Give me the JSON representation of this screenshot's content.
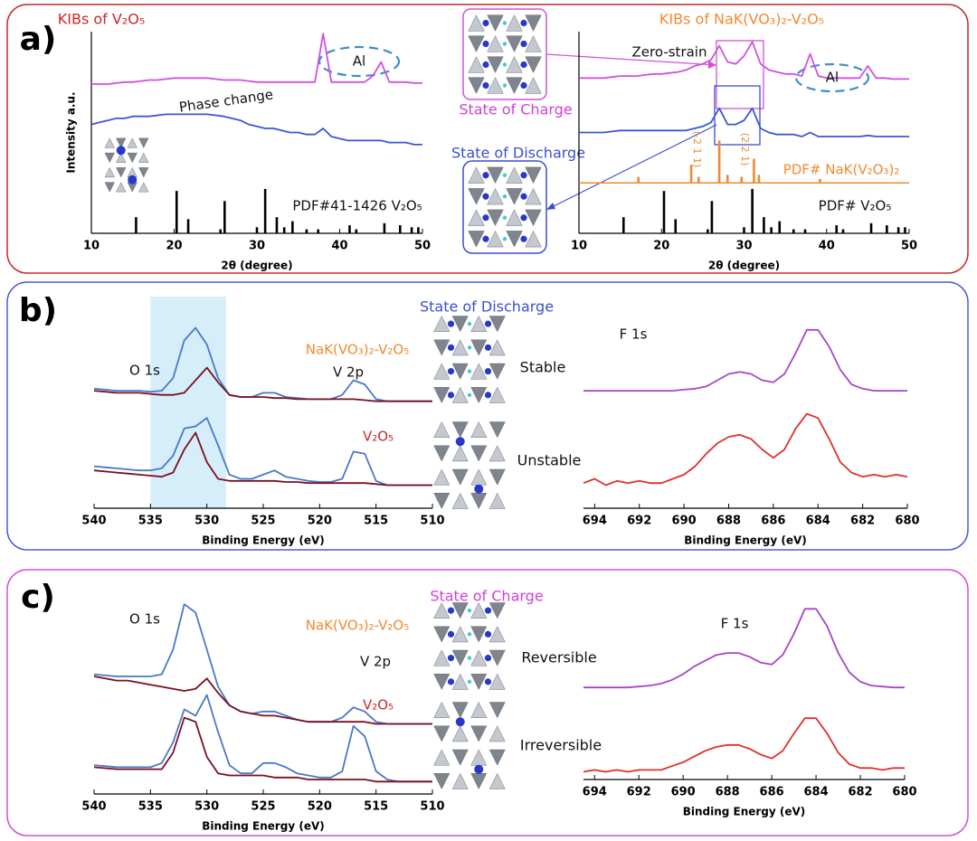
{
  "panels": [
    {
      "label": "a)",
      "texts": [
        {
          "text": "State of Charge",
          "color": "#d040d8"
        },
        {
          "text": "State of Discharge",
          "color": "#3a4fd0"
        }
      ]
    },
    {
      "label": "b)",
      "texts": [
        {
          "text": "State of Discharge",
          "color": "#3a4fd0"
        },
        {
          "text": "Stable",
          "color": "#111111"
        },
        {
          "text": "Unstable",
          "color": "#111111"
        }
      ]
    },
    {
      "label": "c)",
      "texts": [
        {
          "text": "State of Charge",
          "color": "#d040d8"
        },
        {
          "text": "Reversible",
          "color": "#111111"
        },
        {
          "text": "Irreversible",
          "color": "#111111"
        }
      ]
    }
  ],
  "chart_data": [
    {
      "type": "line",
      "title": "KIBs of V₂O₅",
      "title_color": "#c8282a",
      "xlabel": "2θ (degree)",
      "ylabel": "Intensity a.u.",
      "x": [
        10,
        11,
        12,
        13,
        14,
        15,
        16,
        17,
        18,
        19,
        20,
        21,
        22,
        23,
        24,
        25,
        26,
        27,
        28,
        29,
        30,
        31,
        32,
        33,
        34,
        35,
        36,
        37,
        38,
        39,
        40,
        41,
        42,
        43,
        44,
        45,
        46,
        47,
        48,
        49,
        50
      ],
      "xlim": [
        10,
        50
      ],
      "xticks": [
        10,
        20,
        30,
        40,
        50
      ],
      "ylim": [
        0,
        100
      ],
      "series": [
        {
          "color": "#d050e0",
          "values": [
            74,
            74,
            74,
            74.5,
            75,
            75,
            75.5,
            76,
            76,
            76.5,
            77,
            77,
            77,
            77,
            77,
            76.5,
            76,
            76,
            76,
            75.5,
            75,
            75,
            75,
            75,
            75,
            75,
            75,
            75,
            99,
            75,
            75,
            75,
            75,
            75,
            78,
            85,
            75,
            75,
            75,
            74.5,
            74.5
          ]
        },
        {
          "color": "#3a56d8",
          "values": [
            54,
            55,
            56,
            57,
            57,
            58,
            58,
            58,
            58.5,
            59,
            59,
            59,
            59,
            59,
            59,
            58.5,
            58,
            57,
            56,
            54,
            53,
            52,
            52,
            51,
            50,
            50,
            49,
            49,
            52,
            48,
            47,
            46,
            46,
            46,
            46,
            46,
            45,
            45,
            45,
            44,
            44
          ]
        },
        {
          "type": "stick",
          "color": "#000000",
          "x": [
            15.4,
            20.3,
            21.7,
            25.6,
            26.1,
            30.0,
            31.0,
            32.4,
            33.3,
            34.3,
            36.0,
            37.4,
            41.2,
            42.0,
            45.4,
            47.3,
            48.7,
            49.5
          ],
          "values": [
            8,
            21,
            7,
            2,
            16,
            3,
            22,
            8,
            3,
            6,
            2,
            2,
            4,
            2,
            5,
            4,
            3,
            3
          ]
        }
      ],
      "annotations": [
        {
          "text": "Phase change",
          "color": "#111111"
        },
        {
          "text": "Al",
          "color": "#111111"
        },
        {
          "text": "PDF#41-1426 V₂O₅",
          "color": "#111111"
        }
      ]
    },
    {
      "type": "line",
      "title": "KIBs of NaK(VO₃)₂-V₂O₅",
      "title_color": "#f08a30",
      "xlabel": "2θ (degree)",
      "x": [
        10,
        11,
        12,
        13,
        14,
        15,
        16,
        17,
        18,
        19,
        20,
        21,
        22,
        23,
        24,
        25,
        26,
        27,
        28,
        29,
        30,
        31,
        32,
        33,
        34,
        35,
        36,
        37,
        38,
        39,
        40,
        41,
        42,
        43,
        44,
        45,
        46,
        47,
        48,
        49,
        50
      ],
      "xlim": [
        10,
        50
      ],
      "xticks": [
        10,
        20,
        30,
        40,
        50
      ],
      "ylim": [
        0,
        100
      ],
      "series": [
        {
          "color": "#d050e0",
          "values": [
            77,
            77,
            77,
            77,
            77.5,
            78,
            78,
            78,
            78.5,
            79,
            79,
            79.5,
            80,
            81,
            83,
            84,
            86,
            93,
            85,
            84,
            88,
            95,
            84,
            81,
            80,
            79,
            79,
            78,
            89,
            78,
            77,
            77,
            77,
            77,
            77,
            83,
            77,
            77,
            76.5,
            76.5,
            76.5
          ]
        },
        {
          "color": "#3a56d8",
          "values": [
            50,
            50,
            50,
            50,
            50.5,
            51,
            51,
            51,
            51,
            51,
            51,
            51,
            51,
            51,
            52,
            53,
            55,
            62,
            54,
            54,
            56,
            62,
            52,
            50,
            49,
            49,
            49,
            48,
            50,
            48,
            48,
            48,
            48,
            48,
            48,
            48.5,
            48,
            48,
            48,
            48,
            48
          ]
        },
        {
          "type": "stick",
          "color": "#f08a30",
          "base": 25,
          "x": [
            17.2,
            23.6,
            24.5,
            27.0,
            28.0,
            29.7,
            31.2,
            31.8,
            39.2
          ],
          "values": [
            3,
            9,
            3,
            21,
            4,
            3,
            12,
            4,
            2
          ]
        },
        {
          "type": "stick",
          "color": "#000000",
          "x": [
            15.4,
            20.3,
            21.7,
            25.6,
            26.1,
            30.0,
            31.0,
            32.4,
            33.3,
            34.3,
            36.0,
            37.4,
            41.2,
            42.0,
            45.4,
            47.3,
            48.7,
            49.5
          ],
          "values": [
            8,
            21,
            7,
            2,
            16,
            3,
            22,
            8,
            3,
            6,
            2,
            2,
            4,
            2,
            5,
            4,
            3,
            3
          ]
        }
      ],
      "annotations": [
        {
          "text": "Zero-strain",
          "color": "#111111"
        },
        {
          "text": "Al",
          "color": "#111111"
        },
        {
          "text": "(-2 1 1)",
          "color": "#f08a30"
        },
        {
          "text": "(2 2 1)",
          "color": "#f08a30"
        },
        {
          "text": "PDF# NaK(V₂O₃)₂",
          "color": "#f08a30"
        },
        {
          "text": "PDF# V₂O₅",
          "color": "#111111"
        }
      ]
    },
    {
      "type": "line",
      "xlabel": "Binding Energy (eV)",
      "x": [
        540,
        539,
        538,
        537,
        536,
        535,
        534,
        533,
        532,
        531,
        530,
        529,
        528,
        527,
        526,
        525,
        524,
        523,
        522,
        521,
        520,
        519,
        518,
        517,
        516,
        515,
        514,
        513,
        512,
        511,
        510
      ],
      "xlim": [
        540,
        510
      ],
      "xticks": [
        540,
        535,
        530,
        525,
        520,
        515,
        510
      ],
      "ylim": [
        0,
        100
      ],
      "highlight": [
        535,
        528.3
      ],
      "series": [
        {
          "color": "#4a78c8",
          "values": [
            57,
            56.5,
            56,
            56,
            56,
            55.5,
            56,
            62,
            80,
            86,
            78,
            62,
            54,
            53,
            53,
            55,
            55,
            53,
            52.5,
            52,
            52,
            52,
            54,
            61,
            59,
            52,
            51,
            51,
            51,
            51,
            51
          ]
        },
        {
          "color": "#7a1020",
          "values": [
            56,
            55.5,
            55,
            55,
            55,
            54.5,
            54,
            54,
            55,
            61,
            67,
            60,
            54,
            53,
            53,
            53,
            52.5,
            52.5,
            52,
            52,
            52,
            52,
            52,
            52,
            51.5,
            51,
            51,
            51,
            51,
            51,
            51
          ]
        },
        {
          "color": "#4a78c8",
          "values": [
            20,
            19.5,
            19,
            18.5,
            18,
            18,
            19,
            25,
            38,
            39,
            43,
            30,
            16,
            14,
            14,
            16,
            18,
            15,
            14,
            13,
            12.5,
            12.5,
            14,
            27,
            26,
            13,
            11,
            11,
            11,
            11,
            11
          ]
        },
        {
          "color": "#7a1020",
          "values": [
            18,
            17.5,
            17,
            16.5,
            16,
            15.5,
            15,
            17,
            28,
            36,
            22,
            14,
            13,
            13,
            13,
            13,
            13,
            12.5,
            12.5,
            12,
            12,
            12,
            12,
            12,
            12,
            11.5,
            11,
            11,
            11,
            11,
            11
          ]
        }
      ],
      "annotations": [
        {
          "text": "O 1s",
          "color": "#111111"
        },
        {
          "text": "NaK(VO₃)₂-V₂O₅",
          "color": "#f08a30"
        },
        {
          "text": "V 2p",
          "color": "#111111"
        },
        {
          "text": "V₂O₅",
          "color": "#c8282a"
        }
      ]
    },
    {
      "type": "line",
      "xlabel": "Binding Energy (eV)",
      "x": [
        694.5,
        694,
        693.5,
        693,
        692.5,
        692,
        691.5,
        691,
        690.5,
        690,
        689.5,
        689,
        688.5,
        688,
        687.5,
        687,
        686.5,
        686,
        685.5,
        685,
        684.5,
        684,
        683.5,
        683,
        682.5,
        682,
        681.5,
        681,
        680.5,
        680
      ],
      "xlim": [
        694.5,
        680
      ],
      "xticks": [
        694,
        692,
        690,
        688,
        686,
        684,
        682,
        680
      ],
      "ylim": [
        0,
        100
      ],
      "series": [
        {
          "color": "#a845c8",
          "values": [
            56,
            56,
            56,
            56,
            56,
            56,
            56,
            56,
            56,
            56.5,
            57,
            58,
            61,
            64,
            65,
            64,
            61,
            60,
            64,
            74,
            85,
            85,
            77,
            66,
            59,
            57,
            56,
            56,
            56,
            56
          ]
        },
        {
          "color": "#e0302c",
          "values": [
            12,
            14,
            11,
            13,
            12,
            13,
            12,
            12,
            14,
            16,
            20,
            26,
            31,
            34,
            35,
            33,
            28,
            24,
            28,
            38,
            45,
            43,
            33,
            22,
            17,
            15,
            16,
            15,
            16,
            15
          ]
        }
      ],
      "annotations": [
        {
          "text": "F 1s",
          "color": "#111111"
        }
      ]
    },
    {
      "type": "line",
      "xlabel": "Binding Energy (eV)",
      "x": [
        540,
        539,
        538,
        537,
        536,
        535,
        534,
        533,
        532,
        531,
        530,
        529,
        528,
        527,
        526,
        525,
        524,
        523,
        522,
        521,
        520,
        519,
        518,
        517,
        516,
        515,
        514,
        513,
        512,
        511,
        510
      ],
      "xlim": [
        540,
        510
      ],
      "xticks": [
        540,
        535,
        530,
        525,
        520,
        515,
        510
      ],
      "ylim": [
        0,
        100
      ],
      "series": [
        {
          "color": "#4a78c8",
          "values": [
            58,
            57.5,
            57,
            57,
            57,
            57,
            58,
            70,
            92,
            88,
            70,
            52,
            43,
            40,
            39,
            40,
            40,
            38,
            36,
            35,
            35,
            35,
            37,
            42,
            40,
            35,
            34,
            34,
            34,
            34,
            34
          ]
        },
        {
          "color": "#7a1020",
          "values": [
            57,
            56,
            55,
            55,
            54,
            53,
            52,
            51,
            50,
            51,
            56,
            49,
            43,
            40,
            39,
            38,
            38,
            37,
            36,
            35,
            35,
            35,
            35,
            35,
            35,
            34,
            34,
            34,
            34,
            34,
            34
          ]
        },
        {
          "color": "#4a78c8",
          "values": [
            14,
            13.5,
            13,
            13,
            13,
            13,
            15,
            25,
            41,
            38,
            48,
            30,
            14,
            10,
            10,
            15,
            15,
            13,
            10,
            9,
            8,
            8,
            11,
            33,
            28,
            11,
            7,
            6,
            6,
            6,
            6
          ]
        },
        {
          "color": "#7a1020",
          "values": [
            13,
            12.5,
            12,
            12,
            12,
            12,
            12,
            20,
            37,
            35,
            18,
            10,
            9,
            9,
            9,
            9,
            8,
            8,
            8,
            7,
            7,
            7,
            7,
            7,
            7,
            6,
            6,
            6,
            6,
            6,
            6
          ]
        }
      ],
      "annotations": [
        {
          "text": "O 1s",
          "color": "#111111"
        },
        {
          "text": "NaK(VO₃)₂-V₂O₅",
          "color": "#f08a30"
        },
        {
          "text": "V 2p",
          "color": "#111111"
        },
        {
          "text": "V₂O₅",
          "color": "#c8282a"
        }
      ]
    },
    {
      "type": "line",
      "xlabel": "Binding Energy (eV)",
      "x": [
        694.5,
        694,
        693.5,
        693,
        692.5,
        692,
        691.5,
        691,
        690.5,
        690,
        689.5,
        689,
        688.5,
        688,
        687.5,
        687,
        686.5,
        686,
        685.5,
        685,
        684.5,
        684,
        683.5,
        683,
        682.5,
        682,
        681.5,
        681,
        680.5,
        680
      ],
      "xlim": [
        694.5,
        680
      ],
      "xticks": [
        694,
        692,
        690,
        688,
        686,
        684,
        682,
        680
      ],
      "ylim": [
        0,
        100
      ],
      "series": [
        {
          "color": "#a845c8",
          "values": [
            48,
            48,
            48,
            48,
            48,
            48.5,
            49,
            50,
            52,
            55,
            59,
            62,
            65,
            66,
            66,
            64,
            61,
            60,
            65,
            76,
            89,
            89,
            80,
            66,
            56,
            51,
            49,
            48.5,
            48,
            48
          ]
        },
        {
          "color": "#e0302c",
          "values": [
            4,
            5,
            4,
            5,
            4,
            5,
            5,
            5,
            7,
            9,
            12,
            15,
            17,
            18,
            18,
            16,
            13,
            11,
            15,
            24,
            32,
            32,
            24,
            14,
            8,
            6,
            6,
            5,
            6,
            6
          ]
        }
      ],
      "annotations": [
        {
          "text": "F 1s",
          "color": "#111111"
        }
      ]
    }
  ]
}
